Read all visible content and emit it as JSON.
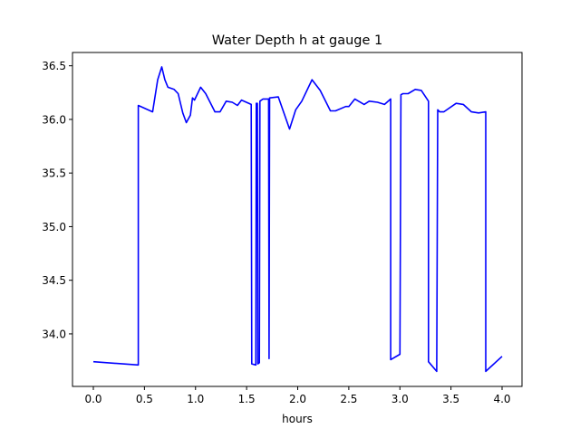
{
  "chart_data": {
    "type": "line",
    "title": "Water Depth h at gauge 1",
    "xlabel": "hours",
    "ylabel": "",
    "xlim": [
      -0.204,
      4.195
    ],
    "ylim": [
      33.51,
      36.624
    ],
    "grid": false,
    "xticks": [
      0.0,
      0.5,
      1.0,
      1.5,
      2.0,
      2.5,
      3.0,
      3.5,
      4.0
    ],
    "xtick_labels": [
      "0.0",
      "0.5",
      "1.0",
      "1.5",
      "2.0",
      "2.5",
      "3.0",
      "3.5",
      "4.0"
    ],
    "yticks": [
      34.0,
      34.5,
      35.0,
      35.5,
      36.0,
      36.5
    ],
    "ytick_labels": [
      "34.0",
      "34.5",
      "35.0",
      "35.5",
      "36.0",
      "36.5"
    ],
    "series": [
      {
        "name": "h",
        "color": "#0000ff",
        "x": [
          0.0,
          0.44,
          0.44,
          0.58,
          0.63,
          0.67,
          0.7,
          0.73,
          0.79,
          0.83,
          0.875,
          0.91,
          0.95,
          0.97,
          0.99,
          1.05,
          1.1,
          1.19,
          1.24,
          1.3,
          1.36,
          1.41,
          1.45,
          1.545,
          1.55,
          1.59,
          1.595,
          1.605,
          1.61,
          1.625,
          1.63,
          1.66,
          1.715,
          1.72,
          1.725,
          1.81,
          1.92,
          1.98,
          2.04,
          2.14,
          2.22,
          2.32,
          2.37,
          2.47,
          2.5,
          2.56,
          2.65,
          2.7,
          2.78,
          2.85,
          2.91,
          2.91,
          3.0,
          3.01,
          3.03,
          3.08,
          3.15,
          3.21,
          3.28,
          3.28,
          3.36,
          3.37,
          3.39,
          3.43,
          3.55,
          3.62,
          3.7,
          3.77,
          3.84,
          3.84,
          4.0
        ],
        "y": [
          33.74,
          33.71,
          36.13,
          36.07,
          36.37,
          36.49,
          36.37,
          36.3,
          36.28,
          36.24,
          36.06,
          35.97,
          36.04,
          36.2,
          36.18,
          36.3,
          36.24,
          36.07,
          36.07,
          36.17,
          36.16,
          36.13,
          36.18,
          36.14,
          33.72,
          33.71,
          36.15,
          36.15,
          33.72,
          33.73,
          36.17,
          36.19,
          36.19,
          33.77,
          36.2,
          36.21,
          35.91,
          36.09,
          36.17,
          36.37,
          36.27,
          36.08,
          36.08,
          36.12,
          36.12,
          36.19,
          36.14,
          36.17,
          36.16,
          36.14,
          36.19,
          33.76,
          33.81,
          36.23,
          36.24,
          36.24,
          36.28,
          36.27,
          36.17,
          33.74,
          33.65,
          36.09,
          36.07,
          36.07,
          36.15,
          36.14,
          36.07,
          36.06,
          36.07,
          33.65,
          33.79
        ]
      }
    ]
  }
}
